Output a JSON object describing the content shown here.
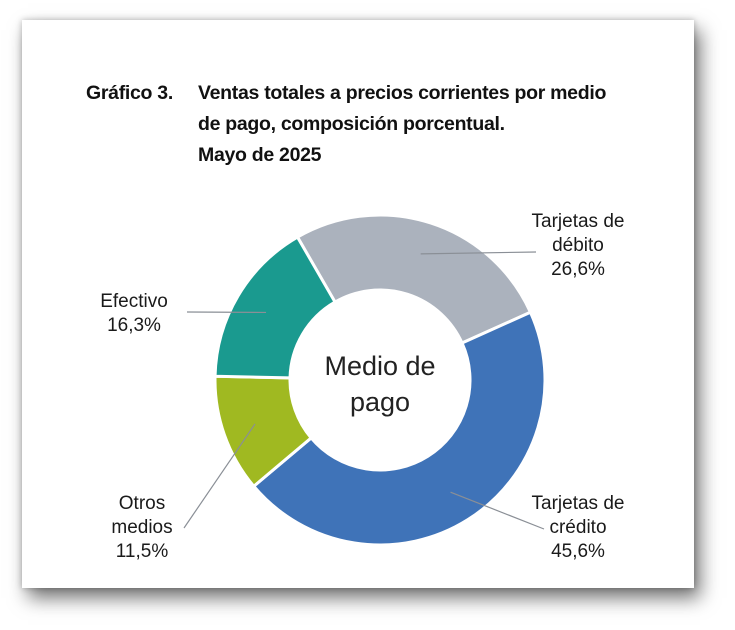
{
  "header": {
    "label": "Gráfico 3.",
    "title_lines": [
      "Ventas totales a precios corrientes por medio",
      "de pago, composición porcentual.",
      "Mayo de 2025"
    ]
  },
  "chart_data": {
    "type": "pie",
    "title": "Ventas totales a precios corrientes por medio de pago, composición porcentual. Mayo de 2025",
    "center_label": [
      "Medio de",
      "pago"
    ],
    "slices": [
      {
        "name_lines": [
          "Tarjetas de",
          "débito"
        ],
        "value": 26.6,
        "value_label": "26,6%",
        "color": "#abb2bd"
      },
      {
        "name_lines": [
          "Tarjetas de",
          "crédito"
        ],
        "value": 45.6,
        "value_label": "45,6%",
        "color": "#3f73b8"
      },
      {
        "name_lines": [
          "Otros",
          "medios"
        ],
        "value": 11.5,
        "value_label": "11,5%",
        "color": "#a0b921"
      },
      {
        "name_lines": [
          "Efectivo"
        ],
        "value": 16.3,
        "value_label": "16,3%",
        "color": "#1a9a8f"
      }
    ],
    "legend": "none"
  }
}
